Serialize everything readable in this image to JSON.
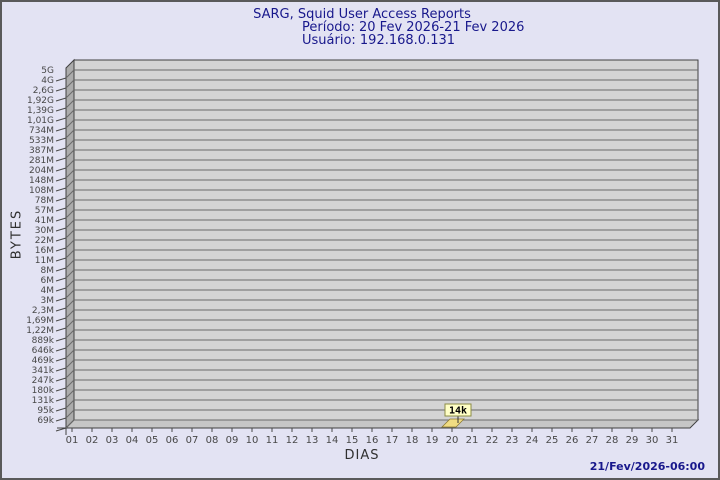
{
  "colors": {
    "background": "#E3E3F3",
    "border": "#5A5A5A",
    "title_text": "#18188C",
    "grid_bg": "#D4D4D4",
    "grid_line": "#6A6A6A",
    "wall": "#ACACAC",
    "floor": "#C6C6C6",
    "frame": "#404040",
    "axis_text": "#484848",
    "bar_fill": "#F0DC82",
    "bar_edge": "#8A7830",
    "annotation_bg": "#FFFFC6",
    "annotation_border": "#8C8C46",
    "annotation_text": "#000000",
    "footer_text": "#18188C"
  },
  "chart_data": {
    "type": "bar",
    "title": "SARG, Squid User Access Reports",
    "subtitle_period": "Período: 20 Fev 2026-21 Fev 2026",
    "subtitle_user": "Usuário: 192.168.0.131",
    "xlabel": "DIAS",
    "ylabel": "BYTES",
    "y_axis_scale": "logarithmic (bytes)",
    "y_tick_labels": [
      "5G",
      "4G",
      "2,6G",
      "1,92G",
      "1,39G",
      "1,01G",
      "734M",
      "533M",
      "387M",
      "281M",
      "204M",
      "148M",
      "108M",
      "78M",
      "57M",
      "41M",
      "30M",
      "22M",
      "16M",
      "11M",
      "8M",
      "6M",
      "4M",
      "3M",
      "2,3M",
      "1,69M",
      "1,22M",
      "889k",
      "646k",
      "469k",
      "341k",
      "247k",
      "180k",
      "131k",
      "95k",
      "69k"
    ],
    "x_categories": [
      "01",
      "02",
      "03",
      "04",
      "05",
      "06",
      "07",
      "08",
      "09",
      "10",
      "11",
      "12",
      "13",
      "14",
      "15",
      "16",
      "17",
      "18",
      "19",
      "20",
      "21",
      "22",
      "23",
      "24",
      "25",
      "26",
      "27",
      "28",
      "29",
      "30",
      "31"
    ],
    "series": [
      {
        "name": "192.168.0.131",
        "points": [
          {
            "day": "20",
            "value_label": "14k",
            "value_bytes": 14000
          }
        ]
      }
    ],
    "annotations": [
      {
        "day": "20",
        "label": "14k"
      }
    ],
    "legend": "none",
    "grid": "horizontal-only",
    "footer_timestamp": "21/Fev/2026-06:00"
  }
}
